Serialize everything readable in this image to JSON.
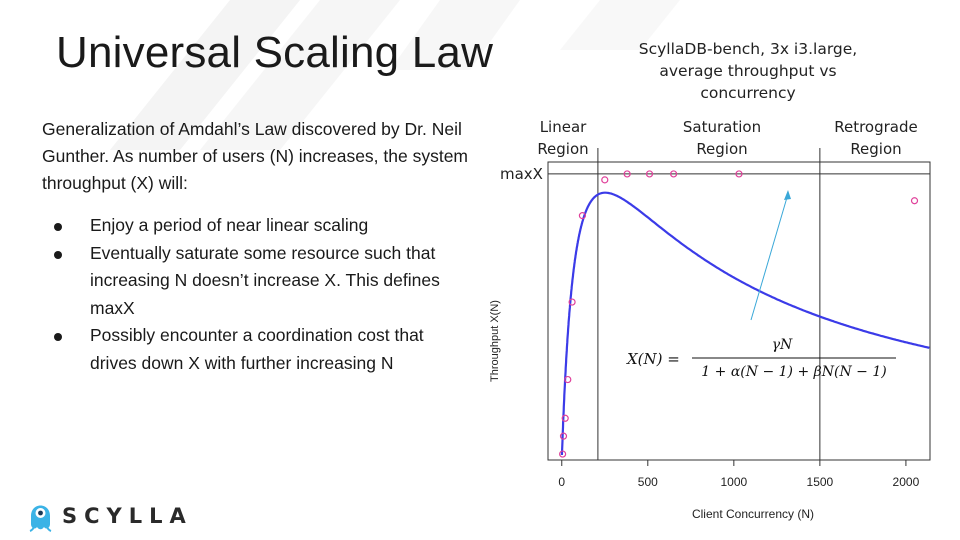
{
  "slide": {
    "title": "Universal Scaling Law",
    "intro": "Generalization of Amdahl’s Law discovered by Dr. Neil Gunther. As number of users (N) increases, the system throughput (X) will:",
    "bullets": [
      "Enjoy a period of near linear scaling",
      "Eventually saturate some resource such that increasing N doesn’t increase X. This defines maxX",
      "Possibly encounter a coordination cost that drives down X with further increasing N"
    ]
  },
  "logo": {
    "text": "SCYLLA",
    "icon": "scylla-monster-icon",
    "color": "#3bb3e6"
  },
  "colors": {
    "curve": "#3b3be8",
    "points": "#e0409a",
    "arrow": "#3aa8d8",
    "decoration": "#f3f3f3"
  },
  "chart_data": {
    "type": "scatter",
    "subtitle": [
      "ScyllaDB-bench, 3x i3.large,",
      "average throughput vs",
      "concurrency"
    ],
    "xlabel": "Client Concurrency (N)",
    "ylabel": "Throughput X(N)",
    "xlim": [
      -80,
      2140
    ],
    "ylim": [
      0,
      1.0
    ],
    "x_ticks": [
      0,
      500,
      1000,
      1500,
      2000
    ],
    "y_ticks": [],
    "grid": false,
    "regions": [
      "Linear Region",
      "Saturation Region",
      "Retrograde Region"
    ],
    "region_boundaries": [
      210,
      1500
    ],
    "maxX_label": "maxX",
    "maxX_value": 0.96,
    "series": [
      {
        "kind": "points",
        "x": [
          5,
          10,
          20,
          35,
          60,
          120,
          250,
          380,
          510,
          650,
          1030,
          2050
        ],
        "y": [
          0.02,
          0.08,
          0.14,
          0.27,
          0.53,
          0.82,
          0.94,
          0.96,
          0.96,
          0.96,
          0.96,
          0.87
        ]
      },
      {
        "kind": "curve",
        "model": "usl",
        "gamma": 0.0167,
        "alpha": 0.0108,
        "beta": 1.55e-05,
        "x_range": [
          1,
          2140
        ]
      }
    ],
    "formula": {
      "lhs": "X(N) =",
      "numerator": "γN",
      "denominator": "1 + α(N − 1) + βN(N − 1)"
    }
  }
}
